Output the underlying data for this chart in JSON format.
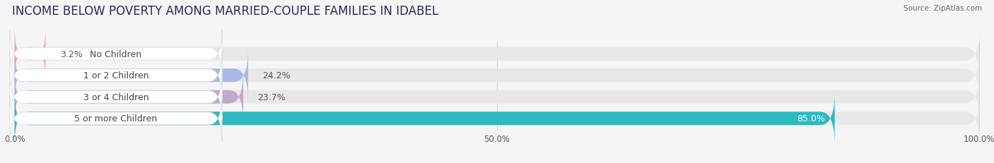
{
  "title": "INCOME BELOW POVERTY AMONG MARRIED-COUPLE FAMILIES IN IDABEL",
  "source": "Source: ZipAtlas.com",
  "categories": [
    "No Children",
    "1 or 2 Children",
    "3 or 4 Children",
    "5 or more Children"
  ],
  "values": [
    3.2,
    24.2,
    23.7,
    85.0
  ],
  "bar_colors": [
    "#f2a0a8",
    "#a8b8e8",
    "#c0a8d0",
    "#2eb8c0"
  ],
  "bar_bg_color": "#e8e8e8",
  "xlim_data": [
    0,
    100
  ],
  "xtick_labels": [
    "0.0%",
    "50.0%",
    "100.0%"
  ],
  "xtick_positions": [
    0,
    50,
    100
  ],
  "title_fontsize": 12,
  "label_fontsize": 9,
  "value_fontsize": 9,
  "background_color": "#f5f5f5",
  "bar_height": 0.62,
  "grid_color": "#cccccc",
  "label_text_color": "#444444",
  "value_text_color_dark": "#555555",
  "value_text_color_light": "#ffffff"
}
